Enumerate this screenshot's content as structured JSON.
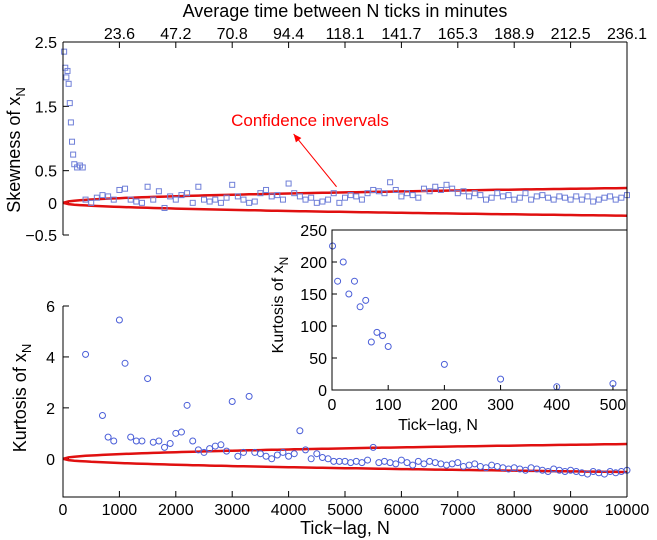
{
  "chart_data": [
    {
      "id": "skewness",
      "type": "scatter",
      "title": "Average time between N ticks in minutes",
      "top_axis_ticks": [
        "23.6",
        "47.2",
        "70.8",
        "94.4",
        "118.1",
        "141.7",
        "165.3",
        "188.9",
        "212.5",
        "236.1"
      ],
      "xlabel": "",
      "ylabel": "Skewness of x_N",
      "ylabel_main": "Skewness of x",
      "ylabel_sub": "N",
      "xlim": [
        0,
        10000
      ],
      "ylim": [
        -0.5,
        2.5
      ],
      "ytick_values": [
        -0.5,
        0,
        0.5,
        1.5,
        2.5
      ],
      "ytick_labels": [
        "−0.5",
        "0",
        "0.5",
        "1.5",
        "2.5"
      ],
      "marker": "square",
      "marker_color": "#6f7fd8",
      "band_color": "#e01010",
      "annotation": {
        "text": "Confidence invervals",
        "x": 4000,
        "y": 1.35,
        "arrow_to": [
          4850,
          0.25
        ]
      },
      "confidence_band": {
        "coeff_upper": 0.0023,
        "coeff_lower": 0.002
      },
      "x": [
        20,
        40,
        60,
        80,
        100,
        120,
        140,
        160,
        180,
        200,
        250,
        300,
        350,
        400,
        500,
        600,
        700,
        800,
        900,
        1000,
        1100,
        1200,
        1300,
        1400,
        1500,
        1600,
        1700,
        1800,
        1900,
        2000,
        2100,
        2200,
        2300,
        2400,
        2500,
        2600,
        2700,
        2800,
        2900,
        3000,
        3100,
        3200,
        3300,
        3400,
        3500,
        3600,
        3700,
        3800,
        3900,
        4000,
        4100,
        4200,
        4300,
        4400,
        4500,
        4600,
        4700,
        4800,
        4900,
        5000,
        5100,
        5200,
        5300,
        5400,
        5500,
        5600,
        5700,
        5800,
        5900,
        6000,
        6100,
        6200,
        6300,
        6400,
        6500,
        6600,
        6700,
        6800,
        6900,
        7000,
        7100,
        7200,
        7300,
        7400,
        7500,
        7600,
        7700,
        7800,
        7900,
        8000,
        8100,
        8200,
        8300,
        8400,
        8500,
        8600,
        8700,
        8800,
        8900,
        9000,
        9100,
        9200,
        9300,
        9400,
        9500,
        9600,
        9700,
        9800,
        9900,
        10000
      ],
      "y": [
        2.35,
        2.1,
        1.95,
        2.05,
        1.85,
        1.55,
        1.25,
        0.95,
        0.75,
        0.6,
        0.55,
        0.58,
        0.55,
        0.05,
        0.0,
        0.08,
        0.12,
        0.1,
        0.05,
        0.2,
        0.22,
        0.05,
        0.02,
        0.0,
        0.25,
        0.05,
        0.18,
        -0.08,
        0.1,
        0.05,
        0.12,
        0.15,
        0.0,
        0.25,
        0.05,
        0.02,
        0.05,
        0.0,
        0.08,
        0.28,
        0.1,
        0.05,
        0.0,
        0.02,
        0.15,
        0.2,
        0.1,
        0.12,
        0.05,
        0.3,
        0.15,
        0.1,
        0.05,
        0.08,
        0.0,
        0.02,
        0.05,
        0.15,
        0.0,
        0.08,
        0.12,
        0.1,
        0.05,
        0.15,
        0.2,
        0.18,
        0.15,
        0.32,
        0.2,
        0.1,
        0.15,
        0.12,
        0.08,
        0.22,
        0.18,
        0.25,
        0.2,
        0.28,
        0.22,
        0.15,
        0.18,
        0.1,
        0.15,
        0.12,
        0.05,
        0.08,
        0.15,
        0.1,
        0.12,
        0.05,
        0.08,
        0.15,
        0.05,
        0.1,
        0.12,
        0.08,
        0.05,
        0.1,
        0.08,
        0.05,
        0.1,
        0.05,
        0.1,
        0.02,
        0.05,
        0.08,
        0.1,
        0.05,
        0.08,
        0.12
      ]
    },
    {
      "id": "kurtosis",
      "type": "scatter",
      "xlabel": "Tick−lag, N",
      "ylabel": "Kurtosis of x_N",
      "ylabel_main": "Kurtosis of x",
      "ylabel_sub": "N",
      "xlim": [
        0,
        10000
      ],
      "ylim": [
        -1.5,
        6
      ],
      "xtick_values": [
        0,
        1000,
        2000,
        3000,
        4000,
        5000,
        6000,
        7000,
        8000,
        9000,
        10000
      ],
      "xtick_labels": [
        "0",
        "1000",
        "2000",
        "3000",
        "4000",
        "5000",
        "6000",
        "7000",
        "8000",
        "9000",
        "10000"
      ],
      "ytick_values": [
        0,
        2,
        4,
        6
      ],
      "ytick_labels": [
        "0",
        "2",
        "4",
        "6"
      ],
      "marker": "circle",
      "marker_color": "#4a5ed8",
      "band_color": "#e01010",
      "confidence_band": {
        "coeff_upper": 0.0058,
        "coeff_lower": 0.0052
      },
      "x": [
        400,
        700,
        800,
        900,
        1000,
        1100,
        1200,
        1300,
        1400,
        1500,
        1600,
        1700,
        1800,
        1900,
        2000,
        2100,
        2200,
        2300,
        2400,
        2500,
        2600,
        2700,
        2800,
        2900,
        3000,
        3100,
        3200,
        3300,
        3400,
        3500,
        3600,
        3700,
        3800,
        3900,
        4000,
        4100,
        4200,
        4300,
        4400,
        4500,
        4600,
        4700,
        4800,
        4900,
        5000,
        5100,
        5200,
        5300,
        5400,
        5500,
        5600,
        5700,
        5800,
        5900,
        6000,
        6100,
        6200,
        6300,
        6400,
        6500,
        6600,
        6700,
        6800,
        6900,
        7000,
        7100,
        7200,
        7300,
        7400,
        7500,
        7600,
        7700,
        7800,
        7900,
        8000,
        8100,
        8200,
        8300,
        8400,
        8500,
        8600,
        8700,
        8800,
        8900,
        9000,
        9100,
        9200,
        9300,
        9400,
        9500,
        9600,
        9700,
        9800,
        9900,
        10000
      ],
      "y": [
        4.1,
        1.7,
        0.85,
        0.7,
        5.45,
        3.75,
        0.85,
        0.7,
        0.7,
        3.15,
        0.65,
        0.7,
        0.45,
        0.6,
        1.0,
        1.05,
        2.1,
        0.7,
        0.35,
        0.25,
        0.4,
        0.5,
        0.55,
        0.3,
        2.25,
        0.1,
        0.25,
        2.45,
        0.25,
        0.2,
        0.1,
        0.0,
        0.15,
        0.25,
        0.1,
        0.2,
        1.1,
        0.35,
        0.0,
        0.2,
        0.05,
        0.0,
        -0.1,
        -0.1,
        -0.1,
        -0.15,
        -0.1,
        -0.15,
        -0.05,
        0.45,
        -0.15,
        -0.1,
        -0.15,
        -0.2,
        -0.05,
        -0.15,
        -0.25,
        -0.1,
        -0.2,
        -0.1,
        -0.15,
        -0.2,
        -0.25,
        -0.2,
        -0.15,
        -0.3,
        -0.25,
        -0.2,
        -0.3,
        -0.35,
        -0.25,
        -0.3,
        -0.35,
        -0.4,
        -0.35,
        -0.4,
        -0.45,
        -0.35,
        -0.4,
        -0.45,
        -0.5,
        -0.4,
        -0.45,
        -0.5,
        -0.45,
        -0.5,
        -0.55,
        -0.6,
        -0.5,
        -0.55,
        -0.6,
        -0.5,
        -0.55,
        -0.5,
        -0.45
      ]
    },
    {
      "id": "kurtosis-inset",
      "type": "scatter",
      "xlabel": "Tick−lag, N",
      "ylabel": "Kurtosis of x_N",
      "ylabel_main": "Kurtosis of x",
      "ylabel_sub": "N",
      "xlim": [
        0,
        525
      ],
      "ylim": [
        0,
        250
      ],
      "xtick_values": [
        0,
        100,
        200,
        300,
        400,
        500
      ],
      "xtick_labels": [
        "0",
        "100",
        "200",
        "300",
        "400",
        "500"
      ],
      "ytick_values": [
        0,
        50,
        100,
        150,
        200,
        250
      ],
      "ytick_labels": [
        "0",
        "50",
        "100",
        "150",
        "200",
        "250"
      ],
      "marker": "circle",
      "marker_color": "#4a5ed8",
      "x": [
        1,
        10,
        20,
        30,
        40,
        50,
        60,
        70,
        80,
        90,
        100,
        200,
        300,
        400,
        500
      ],
      "y": [
        225,
        170,
        200,
        150,
        170,
        130,
        140,
        75,
        90,
        85,
        68,
        40,
        17,
        5,
        10
      ]
    }
  ]
}
